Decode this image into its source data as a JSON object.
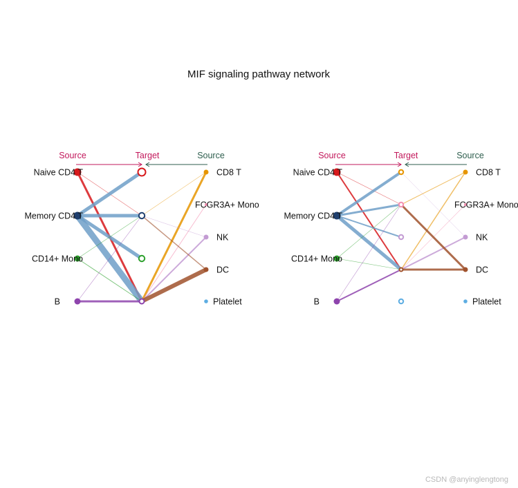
{
  "title": "MIF signaling pathway network",
  "watermark": "CSDN @anyinglengtong",
  "colors": {
    "source_header": "#c2185b",
    "target_header": "#c2185b",
    "right_source_header": "#2e5e4e",
    "text": "#111111"
  },
  "cell_groups": [
    {
      "name": "Naive CD4 T",
      "color": "#d7191c"
    },
    {
      "name": "Memory CD4 T",
      "color": "#1f3f6e"
    },
    {
      "name": "CD14+ Mono",
      "color": "#2ca02c"
    },
    {
      "name": "B",
      "color": "#8e44ad"
    },
    {
      "name": "CD8 T",
      "color": "#e69500"
    },
    {
      "name": "FCGR3A+ Mono",
      "color": "#f48fb1"
    },
    {
      "name": "NK",
      "color": "#c39bd3"
    },
    {
      "name": "DC",
      "color": "#a0522d"
    },
    {
      "name": "Platelet",
      "color": "#5dade2"
    }
  ],
  "panels": [
    {
      "id": "left",
      "headers": {
        "source_left": "Source",
        "target": "Target",
        "source_right": "Source"
      },
      "left_sources": [
        "Naive CD4 T",
        "Memory CD4 T",
        "CD14+ Mono",
        "B"
      ],
      "targets": [
        "Naive CD4 T",
        "Memory CD4 T",
        "CD14+ Mono",
        "B"
      ],
      "right_sources": [
        "CD8 T",
        "FCGR3A+ Mono",
        "NK",
        "DC",
        "Platelet"
      ],
      "edges": [
        {
          "from": "Naive CD4 T",
          "to": "B",
          "weight": 3,
          "color": "#d7191c"
        },
        {
          "from": "Naive CD4 T",
          "to": "Memory CD4 T",
          "weight": 0.6,
          "color": "#d7191c"
        },
        {
          "from": "Memory CD4 T",
          "to": "Naive CD4 T",
          "weight": 5,
          "color": "#6f9fc8"
        },
        {
          "from": "Memory CD4 T",
          "to": "Memory CD4 T",
          "weight": 5,
          "color": "#6f9fc8"
        },
        {
          "from": "Memory CD4 T",
          "to": "CD14+ Mono",
          "weight": 5,
          "color": "#6f9fc8"
        },
        {
          "from": "Memory CD4 T",
          "to": "B",
          "weight": 9,
          "color": "#6f9fc8"
        },
        {
          "from": "CD14+ Mono",
          "to": "Memory CD4 T",
          "weight": 0.6,
          "color": "#2ca02c"
        },
        {
          "from": "CD14+ Mono",
          "to": "B",
          "weight": 1,
          "color": "#2ca02c"
        },
        {
          "from": "B",
          "to": "Memory CD4 T",
          "weight": 0.6,
          "color": "#8e44ad"
        },
        {
          "from": "B",
          "to": "B",
          "weight": 3,
          "color": "#8e44ad"
        },
        {
          "from": "CD8 T",
          "to": "Memory CD4 T",
          "weight": 0.6,
          "color": "#e69500"
        },
        {
          "from": "CD8 T",
          "to": "B",
          "weight": 3,
          "color": "#e69500"
        },
        {
          "from": "FCGR3A+ Mono",
          "to": "B",
          "weight": 1,
          "color": "#f48fb1"
        },
        {
          "from": "NK",
          "to": "Memory CD4 T",
          "weight": 0.6,
          "color": "#c39bd3"
        },
        {
          "from": "NK",
          "to": "B",
          "weight": 2,
          "color": "#c39bd3"
        },
        {
          "from": "DC",
          "to": "Memory CD4 T",
          "weight": 1.5,
          "color": "#a0522d"
        },
        {
          "from": "DC",
          "to": "B",
          "weight": 6,
          "color": "#a0522d"
        }
      ]
    },
    {
      "id": "right",
      "headers": {
        "source_left": "Source",
        "target": "Target",
        "source_right": "Source"
      },
      "left_sources": [
        "Naive CD4 T",
        "Memory CD4 T",
        "CD14+ Mono",
        "B"
      ],
      "targets": [
        "CD8 T",
        "FCGR3A+ Mono",
        "NK",
        "DC",
        "Platelet"
      ],
      "right_sources": [
        "CD8 T",
        "FCGR3A+ Mono",
        "NK",
        "DC",
        "Platelet"
      ],
      "edges": [
        {
          "from": "Naive CD4 T",
          "to": "FCGR3A+ Mono",
          "weight": 0.6,
          "color": "#d7191c"
        },
        {
          "from": "Naive CD4 T",
          "to": "DC",
          "weight": 2,
          "color": "#d7191c"
        },
        {
          "from": "Memory CD4 T",
          "to": "CD8 T",
          "weight": 4,
          "color": "#6f9fc8"
        },
        {
          "from": "Memory CD4 T",
          "to": "FCGR3A+ Mono",
          "weight": 3,
          "color": "#6f9fc8"
        },
        {
          "from": "Memory CD4 T",
          "to": "NK",
          "weight": 2,
          "color": "#6f9fc8"
        },
        {
          "from": "Memory CD4 T",
          "to": "DC",
          "weight": 5,
          "color": "#6f9fc8"
        },
        {
          "from": "CD14+ Mono",
          "to": "FCGR3A+ Mono",
          "weight": 0.6,
          "color": "#2ca02c"
        },
        {
          "from": "CD14+ Mono",
          "to": "DC",
          "weight": 0.6,
          "color": "#2ca02c"
        },
        {
          "from": "B",
          "to": "FCGR3A+ Mono",
          "weight": 0.6,
          "color": "#8e44ad"
        },
        {
          "from": "B",
          "to": "DC",
          "weight": 2,
          "color": "#8e44ad"
        },
        {
          "from": "CD8 T",
          "to": "FCGR3A+ Mono",
          "weight": 1,
          "color": "#e69500"
        },
        {
          "from": "CD8 T",
          "to": "DC",
          "weight": 1.5,
          "color": "#e69500"
        },
        {
          "from": "FCGR3A+ Mono",
          "to": "DC",
          "weight": 0.6,
          "color": "#f48fb1"
        },
        {
          "from": "NK",
          "to": "CD8 T",
          "weight": 0.5,
          "color": "#c39bd3"
        },
        {
          "from": "NK",
          "to": "DC",
          "weight": 2,
          "color": "#c39bd3"
        },
        {
          "from": "DC",
          "to": "FCGR3A+ Mono",
          "weight": 3,
          "color": "#a0522d"
        },
        {
          "from": "DC",
          "to": "DC",
          "weight": 3,
          "color": "#a0522d"
        }
      ]
    }
  ]
}
